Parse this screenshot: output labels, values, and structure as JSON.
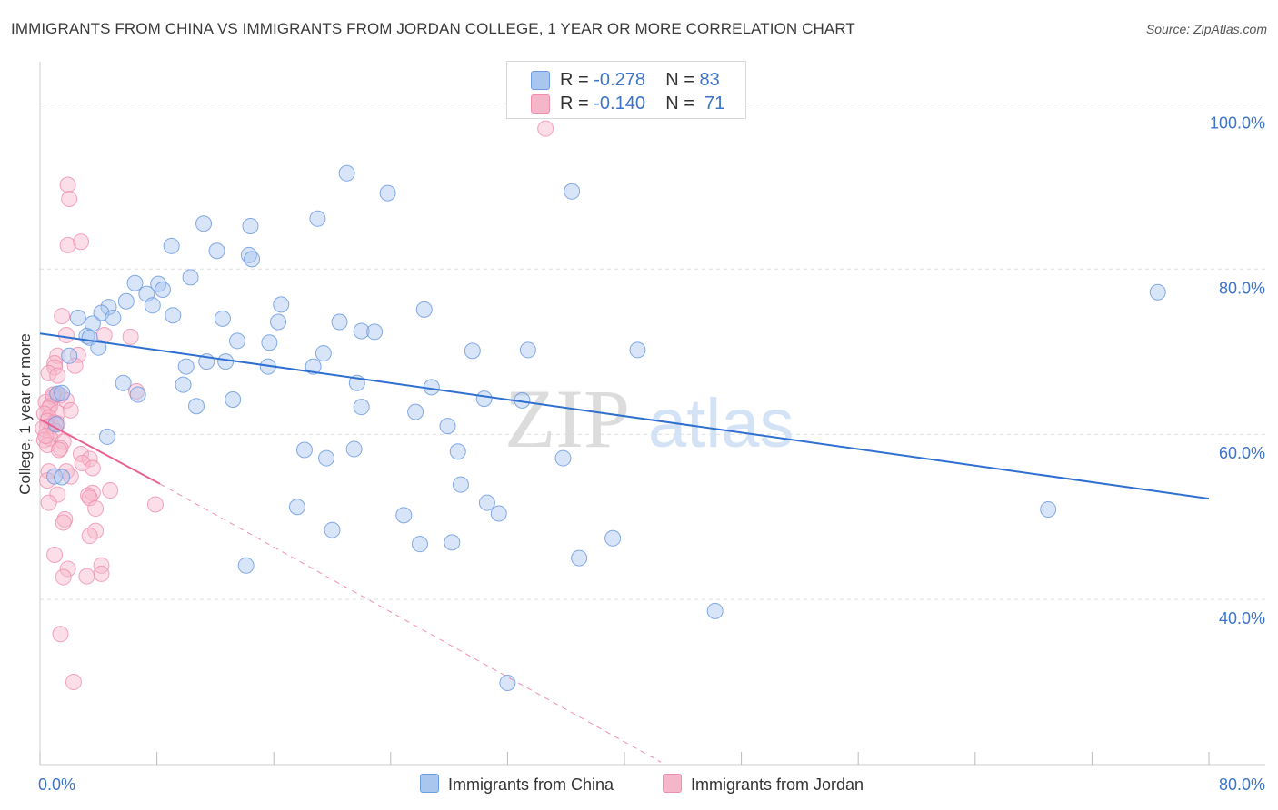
{
  "title": "IMMIGRANTS FROM CHINA VS IMMIGRANTS FROM JORDAN COLLEGE, 1 YEAR OR MORE CORRELATION CHART",
  "source": "Source: ZipAtlas.com",
  "watermark": {
    "zip": "ZIP",
    "atlas": "atlas"
  },
  "colors": {
    "china_fill": "#a9c6ef",
    "china_stroke": "#6f9be0",
    "china_line": "#2e6fd0",
    "jordan_fill": "#f6b6c9",
    "jordan_stroke": "#ef8fae",
    "jordan_line": "#e8638f",
    "axis_label": "#3d74c9",
    "grid": "#dddddd"
  },
  "legend": {
    "china": {
      "r_label": "R =",
      "r_value": "-0.278",
      "n_label": "N =",
      "n_value": "83"
    },
    "jordan": {
      "r_label": "R =",
      "r_value": "-0.140",
      "n_label": "N =",
      "n_value": "71"
    }
  },
  "bottom_legend": {
    "china": "Immigrants from China",
    "jordan": "Immigrants from Jordan"
  },
  "chart_data": {
    "type": "scatter",
    "title": "IMMIGRANTS FROM CHINA VS IMMIGRANTS FROM JORDAN COLLEGE, 1 YEAR OR MORE CORRELATION CHART",
    "xlabel": "",
    "ylabel": "College, 1 year or more",
    "xlim": [
      0,
      80
    ],
    "ylim": [
      20,
      104
    ],
    "x_tick_labels": [
      "0.0%",
      "80.0%"
    ],
    "y_ticks": [
      {
        "value": 100,
        "label": "100.0%"
      },
      {
        "value": 80,
        "label": "80.0%"
      },
      {
        "value": 60,
        "label": "60.0%"
      },
      {
        "value": 40,
        "label": "40.0%"
      }
    ],
    "series": [
      {
        "name": "Immigrants from China",
        "color": "#a9c6ef",
        "points": [
          [
            21.0,
            91.6
          ],
          [
            23.8,
            89.2
          ],
          [
            36.4,
            89.4
          ],
          [
            19.0,
            86.1
          ],
          [
            11.2,
            85.5
          ],
          [
            14.4,
            85.2
          ],
          [
            9.0,
            82.8
          ],
          [
            12.1,
            82.2
          ],
          [
            14.3,
            81.7
          ],
          [
            14.5,
            81.2
          ],
          [
            10.3,
            79.0
          ],
          [
            6.5,
            78.3
          ],
          [
            8.1,
            78.2
          ],
          [
            8.4,
            77.5
          ],
          [
            7.3,
            77.0
          ],
          [
            5.9,
            76.1
          ],
          [
            4.7,
            75.4
          ],
          [
            7.7,
            75.6
          ],
          [
            16.5,
            75.7
          ],
          [
            26.3,
            75.1
          ],
          [
            2.6,
            74.1
          ],
          [
            4.2,
            74.7
          ],
          [
            5.0,
            74.1
          ],
          [
            9.1,
            74.4
          ],
          [
            12.5,
            74.0
          ],
          [
            16.3,
            73.6
          ],
          [
            20.5,
            73.6
          ],
          [
            3.6,
            73.4
          ],
          [
            3.2,
            71.9
          ],
          [
            3.4,
            71.7
          ],
          [
            22.0,
            72.5
          ],
          [
            22.9,
            72.4
          ],
          [
            13.5,
            71.3
          ],
          [
            15.7,
            71.1
          ],
          [
            4.0,
            70.5
          ],
          [
            29.6,
            70.1
          ],
          [
            33.4,
            70.2
          ],
          [
            40.9,
            70.2
          ],
          [
            2.0,
            69.5
          ],
          [
            19.4,
            69.8
          ],
          [
            11.4,
            68.8
          ],
          [
            12.7,
            68.8
          ],
          [
            10.0,
            68.2
          ],
          [
            15.6,
            68.2
          ],
          [
            18.7,
            68.2
          ],
          [
            5.7,
            66.2
          ],
          [
            9.8,
            66.0
          ],
          [
            21.7,
            66.2
          ],
          [
            26.8,
            65.7
          ],
          [
            6.7,
            64.8
          ],
          [
            1.2,
            64.9
          ],
          [
            1.5,
            65.0
          ],
          [
            13.2,
            64.2
          ],
          [
            30.4,
            64.3
          ],
          [
            33.0,
            64.1
          ],
          [
            10.7,
            63.4
          ],
          [
            22.0,
            63.3
          ],
          [
            25.7,
            62.7
          ],
          [
            27.9,
            61.0
          ],
          [
            1.1,
            61.2
          ],
          [
            4.6,
            59.7
          ],
          [
            18.1,
            58.1
          ],
          [
            21.5,
            58.2
          ],
          [
            28.6,
            57.9
          ],
          [
            19.6,
            57.1
          ],
          [
            35.8,
            57.1
          ],
          [
            28.8,
            53.9
          ],
          [
            1.0,
            54.9
          ],
          [
            1.5,
            54.8
          ],
          [
            30.6,
            51.7
          ],
          [
            17.6,
            51.2
          ],
          [
            69.0,
            50.9
          ],
          [
            24.9,
            50.2
          ],
          [
            31.4,
            50.4
          ],
          [
            20.0,
            48.4
          ],
          [
            39.2,
            47.4
          ],
          [
            28.2,
            46.9
          ],
          [
            26.0,
            46.7
          ],
          [
            36.9,
            45.0
          ],
          [
            14.1,
            44.1
          ],
          [
            46.2,
            38.6
          ],
          [
            32.0,
            29.9
          ],
          [
            76.5,
            77.2
          ]
        ]
      },
      {
        "name": "Immigrants from Jordan",
        "color": "#f6b6c9",
        "points": [
          [
            34.6,
            97.0
          ],
          [
            1.9,
            90.2
          ],
          [
            2.0,
            88.5
          ],
          [
            2.8,
            83.3
          ],
          [
            1.9,
            82.9
          ],
          [
            1.5,
            74.3
          ],
          [
            1.8,
            72.0
          ],
          [
            4.4,
            72.0
          ],
          [
            6.2,
            71.8
          ],
          [
            1.2,
            69.5
          ],
          [
            2.6,
            69.6
          ],
          [
            1.0,
            68.6
          ],
          [
            2.4,
            68.3
          ],
          [
            1.0,
            68.1
          ],
          [
            0.6,
            67.4
          ],
          [
            1.2,
            67.1
          ],
          [
            6.6,
            65.2
          ],
          [
            1.1,
            64.7
          ],
          [
            0.9,
            64.5
          ],
          [
            1.4,
            64.7
          ],
          [
            0.4,
            63.9
          ],
          [
            1.8,
            64.1
          ],
          [
            0.7,
            63.4
          ],
          [
            0.6,
            63.1
          ],
          [
            2.1,
            62.9
          ],
          [
            0.3,
            62.5
          ],
          [
            1.2,
            62.6
          ],
          [
            0.6,
            62.0
          ],
          [
            0.5,
            61.6
          ],
          [
            1.0,
            61.4
          ],
          [
            0.8,
            61.0
          ],
          [
            1.2,
            61.3
          ],
          [
            0.5,
            60.9
          ],
          [
            0.2,
            60.7
          ],
          [
            1.0,
            60.4
          ],
          [
            0.7,
            59.5
          ],
          [
            0.3,
            59.3
          ],
          [
            1.6,
            59.1
          ],
          [
            0.5,
            58.7
          ],
          [
            1.4,
            58.3
          ],
          [
            1.3,
            58.1
          ],
          [
            2.8,
            57.6
          ],
          [
            3.4,
            57.0
          ],
          [
            2.9,
            56.5
          ],
          [
            3.6,
            55.9
          ],
          [
            1.8,
            55.5
          ],
          [
            0.6,
            55.5
          ],
          [
            2.1,
            54.9
          ],
          [
            0.5,
            54.4
          ],
          [
            4.8,
            53.2
          ],
          [
            3.6,
            52.9
          ],
          [
            1.2,
            52.7
          ],
          [
            3.3,
            52.6
          ],
          [
            3.4,
            52.3
          ],
          [
            0.6,
            51.7
          ],
          [
            7.9,
            51.5
          ],
          [
            3.8,
            51.0
          ],
          [
            1.7,
            49.7
          ],
          [
            1.6,
            49.3
          ],
          [
            3.8,
            48.3
          ],
          [
            3.4,
            47.7
          ],
          [
            1.0,
            45.4
          ],
          [
            4.2,
            44.1
          ],
          [
            1.9,
            43.7
          ],
          [
            4.2,
            43.1
          ],
          [
            3.2,
            42.8
          ],
          [
            1.6,
            42.7
          ],
          [
            1.4,
            35.8
          ],
          [
            2.3,
            30.0
          ],
          [
            0.4,
            59.8
          ],
          [
            0.9,
            64.8
          ]
        ]
      }
    ],
    "trend_lines": [
      {
        "series": "Immigrants from China",
        "x": [
          0,
          80
        ],
        "y": [
          72.2,
          52.2
        ],
        "style": "solid"
      },
      {
        "series": "Immigrants from Jordan",
        "solid_x": [
          0,
          8.2
        ],
        "solid_y": [
          61.8,
          54.0
        ],
        "dashed_x": [
          8.2,
          42.5
        ],
        "dashed_y": [
          54.0,
          20.3
        ],
        "style": "solid-then-dashed"
      }
    ]
  }
}
